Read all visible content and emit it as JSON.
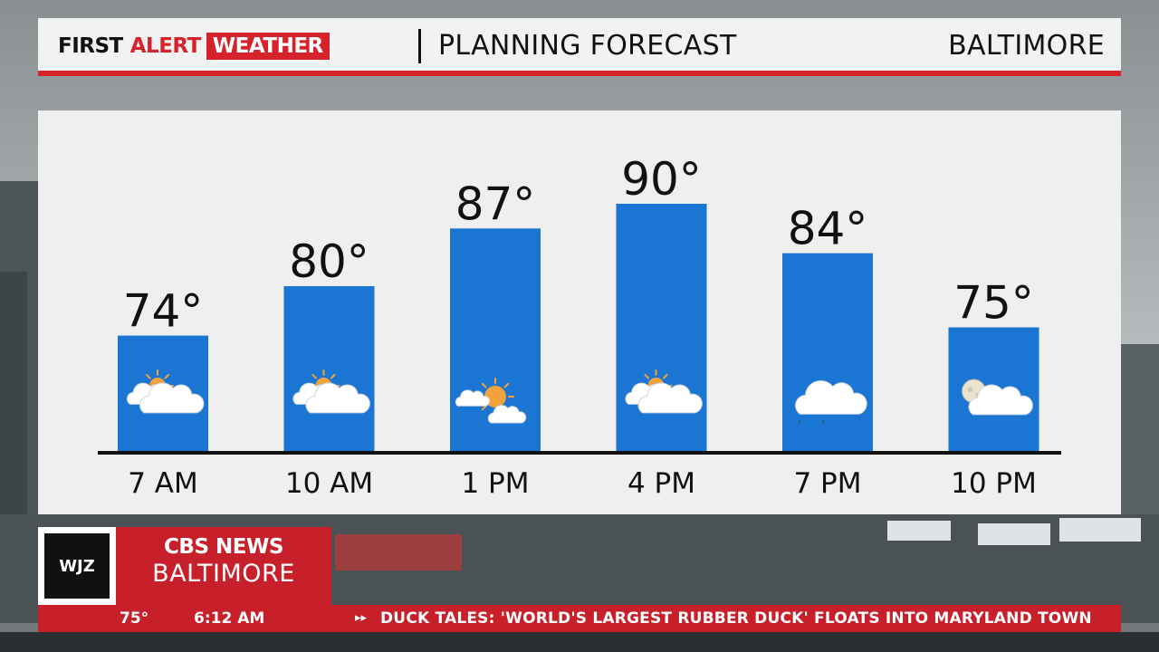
{
  "header": {
    "brand_first": "FIRST",
    "brand_alert": "ALERT",
    "brand_weather": "WEATHER",
    "title": "PLANNING FORECAST",
    "city": "BALTIMORE"
  },
  "colors": {
    "accent_red": "#d6222a",
    "bar_blue": "#1a76d2",
    "panel_bg": "#efefef",
    "text_dark": "#111111"
  },
  "chart_data": {
    "type": "bar",
    "title": "",
    "xlabel": "",
    "ylabel": "",
    "ylim": [
      60,
      95
    ],
    "grid": false,
    "legend": "none",
    "categories": [
      "7 AM",
      "10 AM",
      "1 PM",
      "4 PM",
      "7 PM",
      "10 PM"
    ],
    "values": [
      74,
      80,
      87,
      90,
      84,
      75
    ],
    "value_labels": [
      "74°",
      "80°",
      "87°",
      "90°",
      "84°",
      "75°"
    ],
    "icons": [
      "partly-sunny-icon",
      "partly-sunny-icon",
      "mostly-sunny-icon",
      "partly-sunny-icon",
      "cloudy-icon",
      "partly-cloudy-night-icon"
    ]
  },
  "lower_third": {
    "station": "WJZ",
    "network": "CBS NEWS",
    "city": "BALTIMORE"
  },
  "ticker": {
    "temp": "75°",
    "time": "6:12 AM",
    "arrow": "▸▸",
    "headline": "DUCK TALES: 'WORLD'S LARGEST RUBBER DUCK' FLOATS INTO MARYLAND TOWN"
  }
}
